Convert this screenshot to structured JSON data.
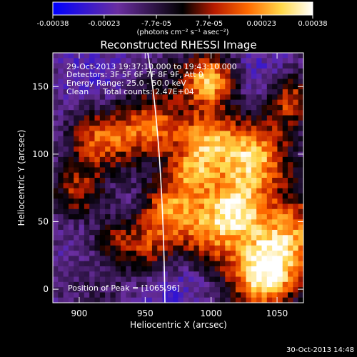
{
  "chart_data": {
    "type": "heatmap",
    "title": "Reconstructed RHESSI Image",
    "xlabel": "Heliocentric X (arcsec)",
    "ylabel": "Heliocentric Y (arcsec)",
    "xlim": [
      880,
      1070
    ],
    "ylim": [
      -10,
      175
    ],
    "xticks": [
      900,
      950,
      1000,
      1050
    ],
    "yticks": [
      0,
      50,
      100,
      150
    ],
    "colorbar": {
      "ticks": [
        "-0.00038",
        "-0.00023",
        "-7.7e-05",
        "7.7e-05",
        "0.00023",
        "0.00038"
      ],
      "tick_values": [
        -0.00038,
        -0.00023,
        -7.7e-05,
        7.7e-05,
        0.00023,
        0.00038
      ],
      "range": [
        -0.00038,
        0.00038
      ],
      "unit_label": "(photons cm⁻² s⁻¹ asec⁻²)",
      "colors": [
        "#0000ff",
        "#6a2ea0",
        "#000000",
        "#b71a00",
        "#ff6a00",
        "#ffd84a",
        "#ffffff"
      ]
    },
    "annotations": {
      "time_range": "29-Oct-2013 19:37:10.000 to 19:43:10.000",
      "detectors": "Detectors: 3F 5F 6F 7F 8F 9F, Att 0",
      "energy": "Energy Range: 25.0 - 50.0 keV",
      "method": "Clean",
      "counts": "Total counts: 2.47E+04",
      "peak": "Position of Peak = [1065,96]"
    },
    "peak_position": [
      1065,
      96
    ],
    "limb_color": "#ffffff"
  },
  "footer": {
    "timestamp": "30-Oct-2013 14:48"
  }
}
